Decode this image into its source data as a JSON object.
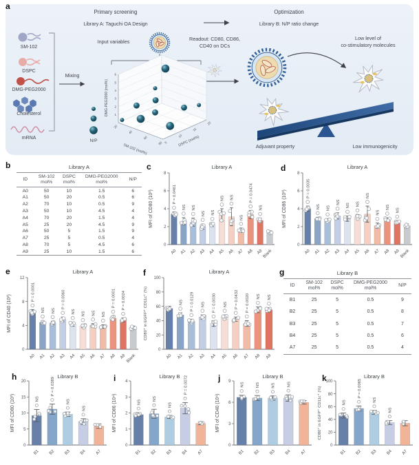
{
  "panel_a": {
    "letter": "a",
    "headings": {
      "primary_screening": "Primary screening",
      "library_a_subtitle": "Library A: Taguchi OA Design",
      "optimization": "Optimization",
      "library_b_subtitle": "Library B: N/P ratio change"
    },
    "labels": {
      "input_variables": "Input variables",
      "mixing": "Mixing",
      "readout_line1": "Readout: CD80, CD86,",
      "readout_line2": "CD40 on DCs",
      "low_level_line1": "Low level of",
      "low_level_line2": "co-stimulatory molecules",
      "adjuvant": "Adjuvant property",
      "low_immunogenicity": "Low immunogenicity",
      "np_legend": "N/P"
    },
    "components": [
      "SM-102",
      "DSPC",
      "DMG-PEG2000",
      "Cholesterol",
      "mRNA"
    ],
    "scatter3d": {
      "z_label": "DMG-PEG2000 (mol%)",
      "z_ticks": [
        1,
        2,
        3,
        4,
        5,
        6
      ],
      "x_label": "SM-102 (mol%)",
      "x_ticks": [
        20,
        40,
        60,
        80
      ],
      "y_label": "DSPC (mol%)",
      "y_ticks": [
        5,
        10,
        15,
        20
      ],
      "points": [
        {
          "sm": 50,
          "dspc": 10,
          "peg": 1.5,
          "np": 6
        },
        {
          "sm": 50,
          "dspc": 20,
          "peg": 0.5,
          "np": 6
        },
        {
          "sm": 70,
          "dspc": 10,
          "peg": 0.5,
          "np": 9
        },
        {
          "sm": 50,
          "dspc": 10,
          "peg": 4.5,
          "np": 4
        },
        {
          "sm": 70,
          "dspc": 20,
          "peg": 1.5,
          "np": 4
        },
        {
          "sm": 25,
          "dspc": 20,
          "peg": 4.5,
          "np": 9
        },
        {
          "sm": 50,
          "dspc": 5,
          "peg": 1.5,
          "np": 9
        },
        {
          "sm": 25,
          "dspc": 5,
          "peg": 0.5,
          "np": 4
        },
        {
          "sm": 70,
          "dspc": 5,
          "peg": 4.5,
          "np": 6
        },
        {
          "sm": 25,
          "dspc": 10,
          "peg": 1.5,
          "np": 6
        }
      ]
    }
  },
  "palettes": {
    "a_blank": [
      "#6780aa",
      "#8aa4c6",
      "#a9bfd9",
      "#c3cde3",
      "#dce3ef",
      "#f6ded6",
      "#f4cfc2",
      "#f0bba7",
      "#ea947f",
      "#e07463",
      "#c8cbce"
    ],
    "a": [
      "#6780aa",
      "#8aa4c6",
      "#a9bfd9",
      "#c3cde3",
      "#dce3ef",
      "#f6ded6",
      "#f4cfc2",
      "#f0bba7",
      "#ea947f",
      "#e07463"
    ],
    "b": [
      "#6780aa",
      "#83a6ca",
      "#aecde2",
      "#c7cde5",
      "#f2b499"
    ],
    "sphere_dark": "#0e3b4d",
    "sphere_mid": "#27677e",
    "sphere_light": "#8fc3cf",
    "seesaw": "#24518b"
  },
  "tables": [
    {
      "letter": "b",
      "title": "Library A",
      "headers": [
        [
          "ID",
          ""
        ],
        [
          "SM-102",
          "mol%"
        ],
        [
          "DSPC",
          "mol%"
        ],
        [
          "DMG-PEG2000",
          "mol%"
        ],
        [
          "N/P",
          ""
        ]
      ],
      "rows": [
        [
          "A0",
          "50",
          "10",
          "1.5",
          "6"
        ],
        [
          "A1",
          "50",
          "20",
          "0.5",
          "6"
        ],
        [
          "A2",
          "70",
          "10",
          "0.5",
          "9"
        ],
        [
          "A3",
          "50",
          "10",
          "4.5",
          "4"
        ],
        [
          "A4",
          "70",
          "20",
          "1.5",
          "4"
        ],
        [
          "A5",
          "25",
          "20",
          "4.5",
          "9"
        ],
        [
          "A6",
          "50",
          "5",
          "1.5",
          "9"
        ],
        [
          "A7",
          "25",
          "5",
          "0.5",
          "4"
        ],
        [
          "A8",
          "70",
          "5",
          "4.5",
          "6"
        ],
        [
          "A9",
          "25",
          "10",
          "1.5",
          "6"
        ]
      ]
    },
    {
      "letter": "g",
      "title": "Library B",
      "headers": [
        [
          "ID",
          ""
        ],
        [
          "SM-102",
          "mol%"
        ],
        [
          "DSPC",
          "mol%"
        ],
        [
          "DMG-PEG2000",
          "mol%"
        ],
        [
          "N/P",
          ""
        ]
      ],
      "rows": [
        [
          "B1",
          "25",
          "5",
          "0.5",
          "9"
        ],
        [
          "B2",
          "25",
          "5",
          "0.5",
          "8"
        ],
        [
          "B3",
          "25",
          "5",
          "0.5",
          "7"
        ],
        [
          "B4",
          "25",
          "5",
          "0.5",
          "6"
        ],
        [
          "A7",
          "25",
          "5",
          "0.5",
          "4"
        ]
      ]
    }
  ],
  "chart_data": [
    {
      "type": "bar",
      "letter": "c",
      "title": "Library A",
      "ylabel": "MFI of CD80 (10³)",
      "ylim": [
        0,
        8
      ],
      "yticks": [
        0,
        2,
        4,
        6,
        8
      ],
      "categories": [
        "A0",
        "A1",
        "A2",
        "A3",
        "A4",
        "A5",
        "A6",
        "A7",
        "A8",
        "A9",
        "Blank"
      ],
      "values": [
        3.4,
        2.6,
        2.5,
        2.0,
        2.2,
        3.3,
        3.1,
        1.6,
        3.35,
        2.7,
        1.4
      ],
      "errors": [
        0.25,
        0.4,
        0.45,
        0.3,
        0.2,
        0.7,
        1.0,
        0.25,
        0.45,
        0.25,
        0.15
      ],
      "sig": [
        "P = 0.0461",
        "NS",
        "NS",
        "NS",
        "NS",
        "NS",
        "NS",
        "NS",
        "P = 0.0474",
        "NS",
        ""
      ],
      "palette": "a_blank"
    },
    {
      "type": "bar",
      "letter": "d",
      "title": "Library A",
      "ylabel": "MFI of CD86 (10³)",
      "ylim": [
        0,
        8
      ],
      "yticks": [
        0,
        2,
        4,
        6,
        8
      ],
      "categories": [
        "A0",
        "A1",
        "A2",
        "A3",
        "A4",
        "A5",
        "A6",
        "A7",
        "A8",
        "A9",
        "Blank"
      ],
      "values": [
        4.0,
        2.9,
        2.7,
        3.2,
        2.9,
        3.1,
        3.4,
        2.1,
        2.8,
        2.5,
        2.1
      ],
      "errors": [
        0.3,
        0.15,
        0.2,
        0.35,
        0.3,
        0.25,
        0.9,
        0.3,
        0.2,
        0.15,
        0.2
      ],
      "sig": [
        "P = 0.0035",
        "NS",
        "NS",
        "NS",
        "NS",
        "NS",
        "NS",
        "NS",
        "NS",
        "NS",
        ""
      ],
      "palette": "a_blank"
    },
    {
      "type": "bar",
      "letter": "e",
      "title": "Library A",
      "ylabel": "MFI of CD40 (10³)",
      "ylim": [
        0,
        12
      ],
      "yticks": [
        0,
        4,
        8,
        12
      ],
      "categories": [
        "A0",
        "A1",
        "A2",
        "A3",
        "A4",
        "A5",
        "A6",
        "A7",
        "A8",
        "A9",
        "Blank"
      ],
      "values": [
        6.2,
        4.5,
        4.4,
        5.0,
        4.2,
        3.9,
        4.0,
        3.8,
        5.2,
        4.9,
        3.6
      ],
      "errors": [
        0.45,
        0.3,
        0.3,
        0.4,
        0.35,
        0.3,
        0.3,
        0.3,
        0.4,
        0.35,
        0.3
      ],
      "sig": [
        "P = 0.0001",
        "NS",
        "NS",
        "P = 0.0060",
        "NS",
        "NS",
        "NS",
        "NS",
        "P = 0.0001",
        "P = 0.0024",
        ""
      ],
      "palette": "a_blank"
    },
    {
      "type": "bar",
      "letter": "f",
      "title": "Library A",
      "ylabel": "CD80⁺ in EGFP⁺ CD11c⁺ (%)",
      "ylim": [
        0,
        100
      ],
      "yticks": [
        0,
        20,
        40,
        60,
        80,
        100
      ],
      "categories": [
        "A0",
        "A1",
        "A2",
        "A3",
        "A4",
        "A5",
        "A6",
        "A7",
        "A8",
        "A9"
      ],
      "values": [
        57,
        48,
        39,
        45,
        36,
        45,
        42,
        36,
        55,
        55
      ],
      "errors": [
        3,
        3,
        3,
        3,
        4,
        3,
        3,
        4,
        4,
        3
      ],
      "sig": [
        "",
        "NS",
        "P = 0.0129",
        "NS",
        "P = 0.0030",
        "NS",
        "P = 0.0432",
        "P = 0.0020",
        "NS",
        "NS"
      ],
      "palette": "a"
    },
    {
      "type": "bar",
      "letter": "h",
      "title": "Library B",
      "ylabel": "MFI of CD80 (10³)",
      "ylim": [
        0,
        20
      ],
      "yticks": [
        0,
        5,
        10,
        15,
        20
      ],
      "categories": [
        "B1",
        "B2",
        "B3",
        "B4",
        "A7"
      ],
      "values": [
        9.2,
        11.2,
        9.6,
        7.3,
        5.9
      ],
      "errors": [
        1.9,
        1.6,
        0.7,
        0.9,
        0.7
      ],
      "sig": [
        "NS",
        "P = 0.0389",
        "NS",
        "NS",
        ""
      ],
      "palette": "b"
    },
    {
      "type": "bar",
      "letter": "i",
      "title": "Library B",
      "ylabel": "MFI of CD86 (10⁴)",
      "ylim": [
        0,
        4
      ],
      "yticks": [
        0,
        1,
        2,
        3,
        4
      ],
      "categories": [
        "B1",
        "B2",
        "B3",
        "B4",
        "A7"
      ],
      "values": [
        1.9,
        1.95,
        1.75,
        2.3,
        1.35
      ],
      "errors": [
        0.12,
        0.28,
        0.1,
        0.35,
        0.08
      ],
      "sig": [
        "NS",
        "NS",
        "NS",
        "P = 0.0072",
        ""
      ],
      "palette": "b"
    },
    {
      "type": "bar",
      "letter": "j",
      "title": "Library B",
      "ylabel": "MFI of CD40 (10⁴)",
      "ylim": [
        0,
        9
      ],
      "yticks": [
        0,
        3,
        6,
        9
      ],
      "categories": [
        "B1",
        "B2",
        "B3",
        "B4",
        "A7"
      ],
      "values": [
        6.7,
        6.6,
        6.6,
        6.6,
        6.0
      ],
      "errors": [
        0.3,
        0.35,
        0.3,
        0.45,
        0.25
      ],
      "sig": [
        "NS",
        "NS",
        "NS",
        "NS",
        ""
      ],
      "palette": "b"
    },
    {
      "type": "bar",
      "letter": "k",
      "title": "Library B",
      "ylabel": "CD80⁺ in EGFP⁺ CD11c⁺ (%)",
      "ylim": [
        0,
        100
      ],
      "yticks": [
        0,
        20,
        40,
        60,
        80,
        100
      ],
      "categories": [
        "B1",
        "B2",
        "B3",
        "B4",
        "A7"
      ],
      "values": [
        46,
        57,
        51,
        35,
        34
      ],
      "errors": [
        4,
        4,
        3,
        3,
        4
      ],
      "sig": [
        "NS",
        "P = 0.0065",
        "NS",
        "NS",
        ""
      ],
      "palette": "b"
    }
  ]
}
